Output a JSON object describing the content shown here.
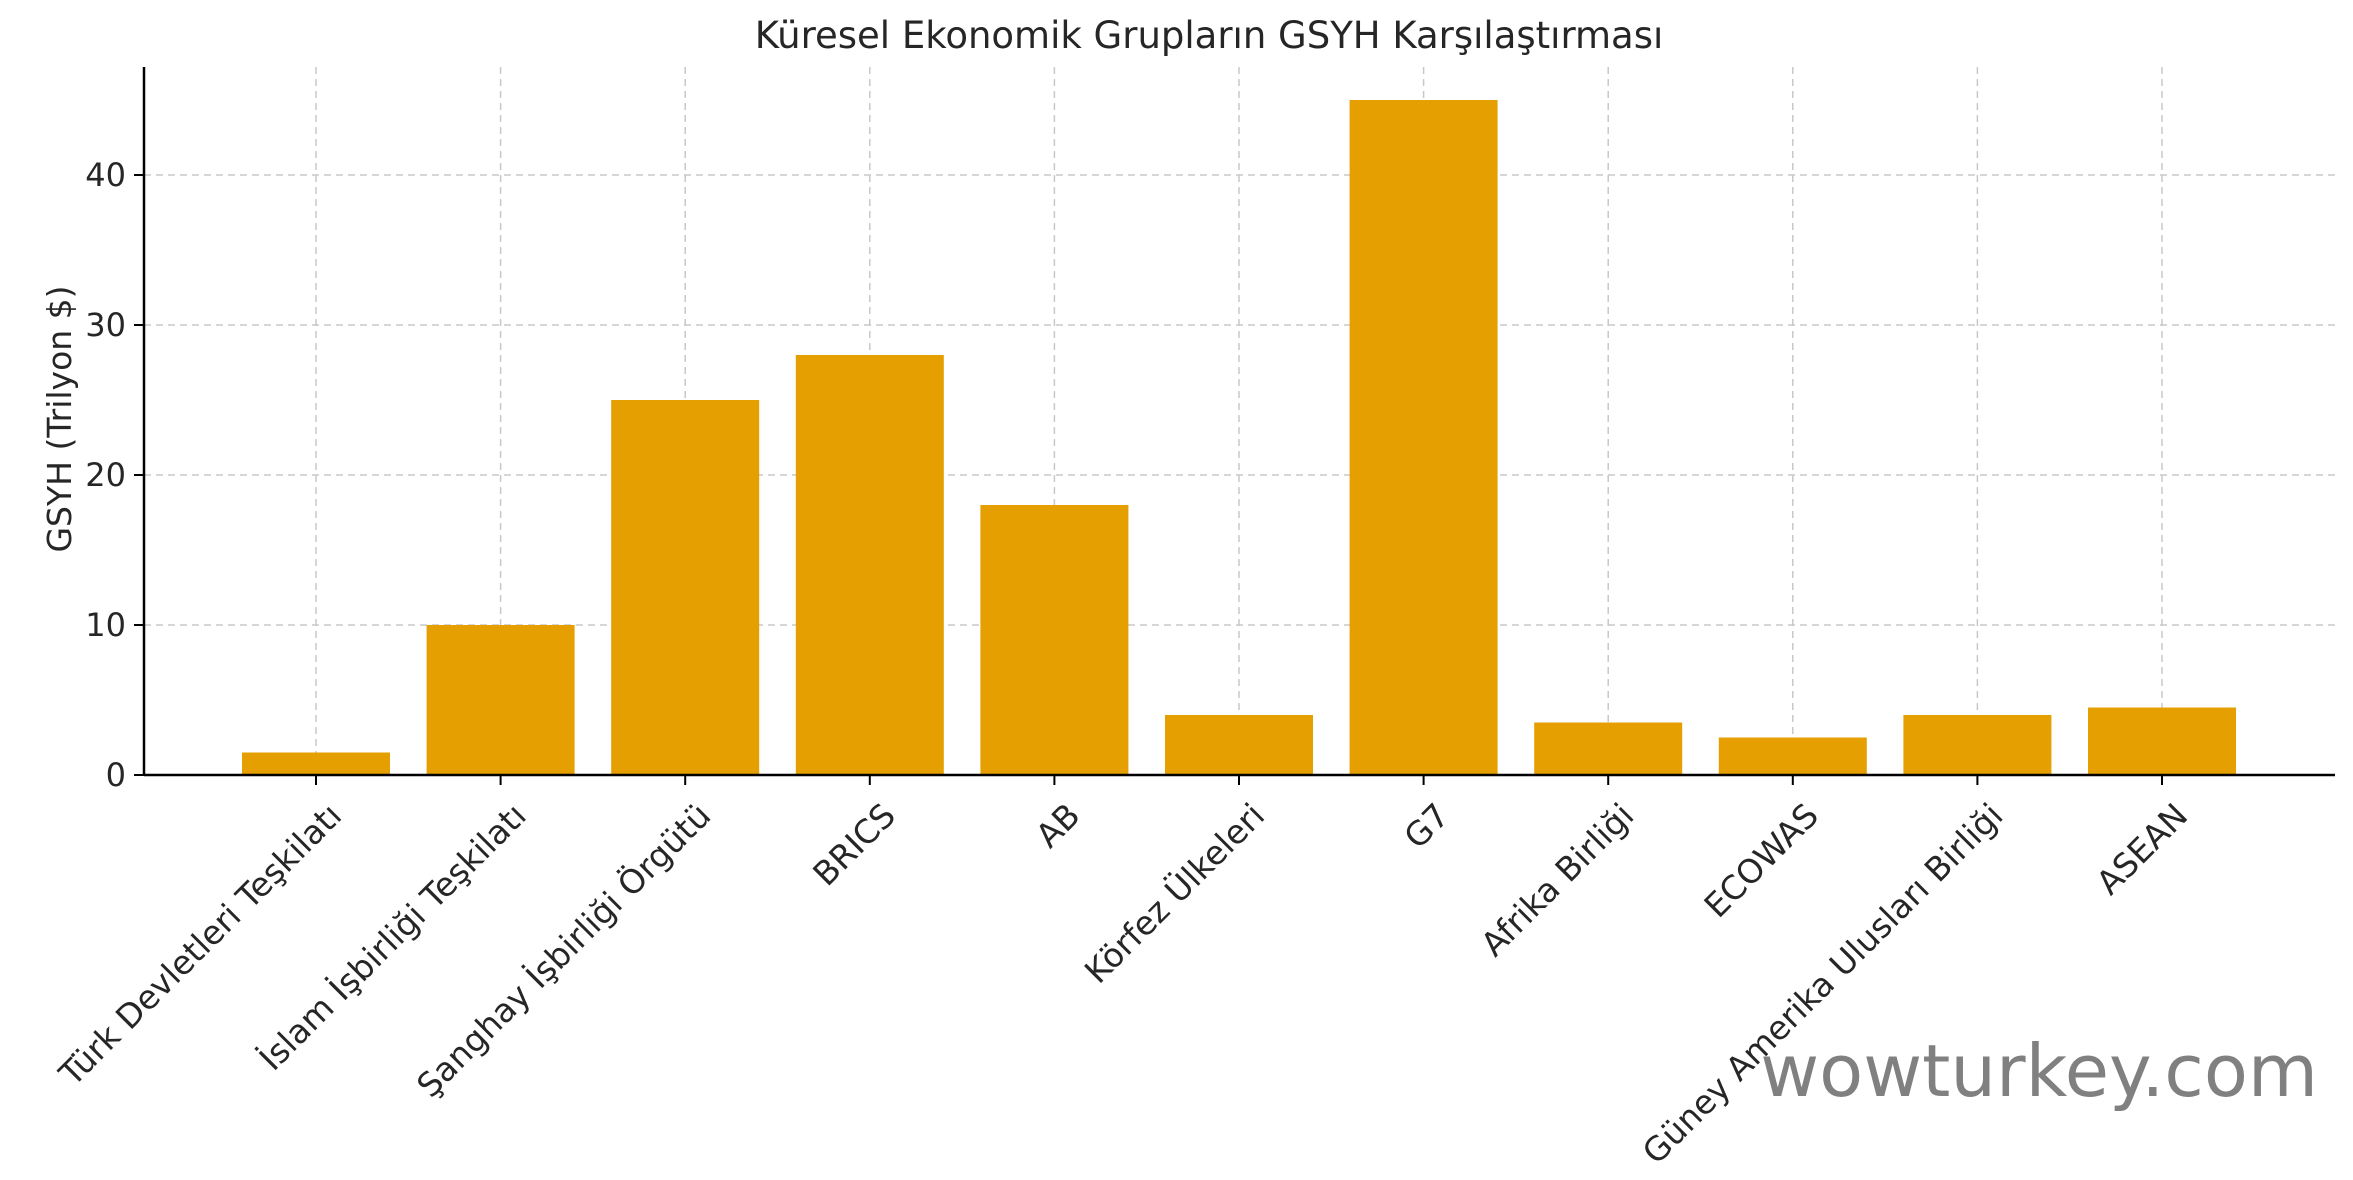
{
  "chart_data": {
    "type": "bar",
    "title": "Küresel Ekonomik Grupların GSYH Karşılaştırması",
    "xlabel": "",
    "ylabel": "GSYH (Trilyon $)",
    "categories": [
      "Türk Devletleri Teşkilatı",
      "İslam İşbirliği Teşkilatı",
      "Şanghay İşbirliği Örgütü",
      "BRICS",
      "AB",
      "Körfez Ülkeleri",
      "G7",
      "Afrika Birliği",
      "ECOWAS",
      "Güney Amerika Ulusları Birliği",
      "ASEAN"
    ],
    "values": [
      1.5,
      10,
      25,
      28,
      18,
      4,
      45,
      3.5,
      2.5,
      4,
      4.5
    ],
    "ylim": [
      0,
      47.2
    ],
    "yticks": [
      0,
      10,
      20,
      30,
      40
    ],
    "grid": true,
    "bar_color": "#E69F00"
  },
  "watermark": "wowturkey.com"
}
